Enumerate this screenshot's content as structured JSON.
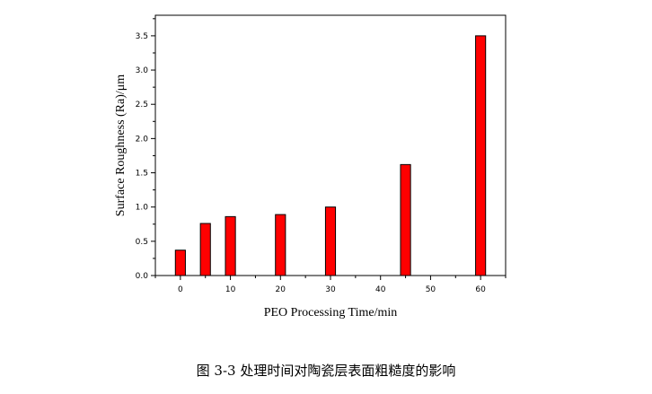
{
  "chart_data": {
    "type": "bar",
    "x": [
      0,
      5,
      10,
      20,
      30,
      45,
      60
    ],
    "values": [
      0.37,
      0.76,
      0.86,
      0.89,
      1.0,
      1.62,
      3.5
    ],
    "xlabel": "PEO Processing Time/min",
    "ylabel": "Surface Roughness (Ra)/μm",
    "xlim": [
      -5,
      65
    ],
    "ylim": [
      0,
      3.8
    ],
    "xticks": [
      0,
      10,
      20,
      30,
      40,
      50,
      60
    ],
    "yticks": [
      "0.0",
      "0.5",
      "1.0",
      "1.5",
      "2.0",
      "2.5",
      "3.0",
      "3.5"
    ],
    "bar_color": "#ff0000",
    "grid": false,
    "legend": "none"
  },
  "caption": "图  3-3  处理时间对陶瓷层表面粗糙度的影响"
}
